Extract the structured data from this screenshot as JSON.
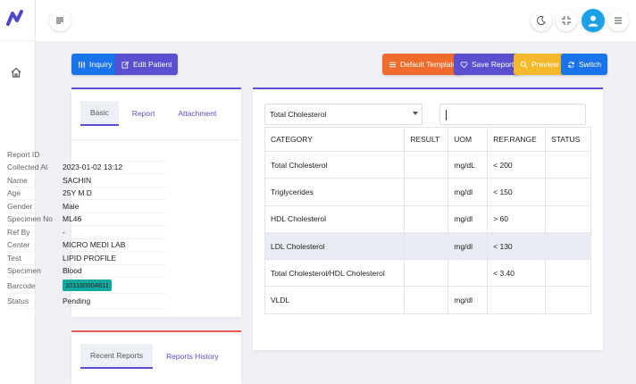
{
  "rail": {
    "logo": "app-logo",
    "home_icon": "home-icon"
  },
  "topbar": {
    "menu_icon": "menu-lines-icon",
    "theme_icon": "moon-icon",
    "fullscreen_icon": "collapse-icon",
    "avatar": "user-avatar",
    "settings_icon": "hamburger-icon"
  },
  "actions": {
    "inquiry": "Inquiry",
    "edit_patient": "Edit Patient",
    "default_template": "Default Template",
    "save_report": "Save Report",
    "preview": "Preview",
    "switch": "Switch"
  },
  "colors": {
    "primary": "#1a73e8",
    "purple": "#5a4fcf",
    "orange": "#ef6c2c",
    "yellow": "#f4b92a",
    "teal": "#13a89e",
    "red": "#e25a4a"
  },
  "patient_tabs": [
    "Basic",
    "Report",
    "Attachment"
  ],
  "patient_info": [
    {
      "k": "Report ID",
      "v": ""
    },
    {
      "k": "Collected At",
      "v": "2023-01-02 13:12"
    },
    {
      "k": "Name",
      "v": "SACHIN"
    },
    {
      "k": "Age",
      "v": "25Y M D"
    },
    {
      "k": "Gender",
      "v": "Male"
    },
    {
      "k": "Specimen No",
      "v": "ML46"
    },
    {
      "k": "Ref By",
      "v": "-"
    },
    {
      "k": "Center",
      "v": "MICRO MEDI LAB"
    },
    {
      "k": "Test",
      "v": "LIPID PROFILE"
    },
    {
      "k": "Specimen",
      "v": "Blood"
    },
    {
      "k": "Barcode",
      "v": "101100004611"
    },
    {
      "k": "Status",
      "v": "Pending"
    }
  ],
  "history_tabs": [
    "Recent Reports",
    "Reports History"
  ],
  "report": {
    "selected_test": "Total Cholesterol",
    "columns": [
      "CATEGORY",
      "RESULT",
      "UOM",
      "REF.RANGE",
      "STATUS"
    ],
    "rows": [
      [
        "Total Cholesterol",
        "",
        "mg/dL",
        "< 200",
        ""
      ],
      [
        "Triglycerides",
        "",
        "mg/dl",
        "< 150",
        ""
      ],
      [
        "HDL Cholesterol",
        "",
        "mg/dl",
        "> 60",
        ""
      ],
      [
        "LDL Cholesterol",
        "",
        "mg/dl",
        "< 130",
        ""
      ],
      [
        "Total Cholesterol/HDL Cholesterol",
        "",
        "",
        "< 3.40",
        ""
      ],
      [
        "VLDL",
        "",
        "mg/dl",
        "",
        ""
      ]
    ]
  }
}
